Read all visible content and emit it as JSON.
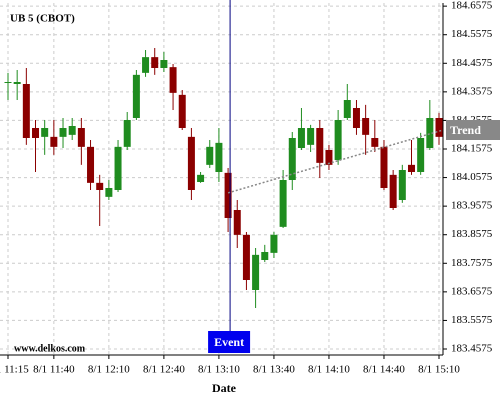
{
  "chart_data": {
    "type": "candlestick",
    "title": "UB 5 (CBOT)",
    "watermark": "www.delkos.com",
    "x_label": "Date",
    "categories": [
      "8/1 11:15",
      null,
      null,
      null,
      null,
      "8/1 11:40",
      null,
      null,
      null,
      null,
      null,
      "8/1 12:10",
      null,
      null,
      null,
      null,
      null,
      "8/1 12:40",
      null,
      null,
      null,
      null,
      null,
      "8/1 13:10",
      null,
      null,
      null,
      null,
      null,
      "8/1 13:40",
      null,
      null,
      null,
      null,
      null,
      "8/1 14:10",
      null,
      null,
      null,
      null,
      null,
      "8/1 14:40",
      null,
      null,
      null,
      null,
      null,
      "8/1 15:10"
    ],
    "open": [
      184.389,
      184.385,
      184.385,
      184.231,
      184.2,
      184.2,
      184.2,
      184.207,
      184.231,
      184.165,
      184.039,
      183.99,
      184.014,
      184.165,
      184.266,
      184.424,
      184.479,
      184.441,
      184.444,
      184.347,
      184.2,
      184.042,
      184.102,
      184.077,
      184.074,
      183.944,
      183.857,
      183.664,
      183.769,
      183.794,
      183.885,
      184.049,
      184.161,
      184.172,
      184.231,
      184.154,
      184.119,
      184.266,
      184.301,
      184.266,
      184.196,
      184.165,
      184.067,
      183.979,
      184.102,
      184.077,
      184.161,
      184.266
    ],
    "high": [
      184.424,
      184.434,
      184.441,
      184.259,
      184.259,
      184.259,
      184.266,
      184.266,
      184.266,
      184.189,
      184.067,
      184.049,
      184.189,
      184.287,
      184.434,
      184.504,
      184.511,
      184.497,
      184.455,
      184.364,
      184.231,
      184.077,
      184.189,
      184.231,
      184.091,
      183.979,
      183.867,
      183.811,
      183.822,
      183.867,
      184.084,
      184.217,
      184.301,
      184.242,
      184.259,
      184.172,
      184.294,
      184.385,
      184.329,
      184.312,
      184.259,
      184.189,
      184.084,
      184.102,
      184.189,
      184.214,
      184.329,
      184.284
    ],
    "low": [
      184.329,
      184.329,
      184.172,
      184.077,
      184.137,
      184.137,
      184.161,
      184.189,
      184.102,
      184.014,
      183.888,
      183.979,
      184.007,
      184.154,
      184.259,
      184.41,
      184.417,
      184.427,
      184.294,
      184.224,
      183.979,
      184.039,
      184.091,
      184.042,
      183.867,
      183.811,
      183.664,
      183.601,
      183.762,
      183.776,
      183.881,
      184.014,
      184.154,
      184.147,
      184.056,
      184.084,
      184.102,
      184.259,
      184.207,
      184.137,
      184.147,
      184.014,
      183.944,
      183.969,
      184.067,
      184.067,
      184.154,
      184.172
    ],
    "close": [
      184.392,
      184.392,
      184.196,
      184.196,
      184.231,
      184.165,
      184.231,
      184.238,
      184.165,
      184.039,
      184.014,
      184.021,
      184.165,
      184.259,
      184.417,
      184.479,
      184.441,
      184.469,
      184.354,
      184.231,
      184.014,
      184.067,
      184.165,
      184.179,
      183.916,
      183.857,
      183.699,
      183.787,
      183.797,
      183.857,
      184.049,
      184.196,
      184.231,
      184.231,
      184.109,
      184.102,
      184.259,
      184.329,
      184.231,
      184.207,
      184.165,
      184.021,
      183.951,
      184.084,
      184.077,
      184.196,
      184.266,
      184.2
    ],
    "up_color": "#1f8c1f",
    "down_color": "#8b0000",
    "trend": {
      "label": "Trend",
      "values": [
        184.004,
        184.224
      ]
    },
    "event": {
      "label": "Event"
    },
    "ylim": [
      183.4365,
      184.6685
    ],
    "yticks": [
      184.6575,
      184.5575,
      184.4575,
      184.3575,
      184.2575,
      184.1575,
      184.0575,
      183.9575,
      183.8575,
      183.7575,
      183.6575,
      183.5575,
      183.4575
    ],
    "grid": true
  }
}
